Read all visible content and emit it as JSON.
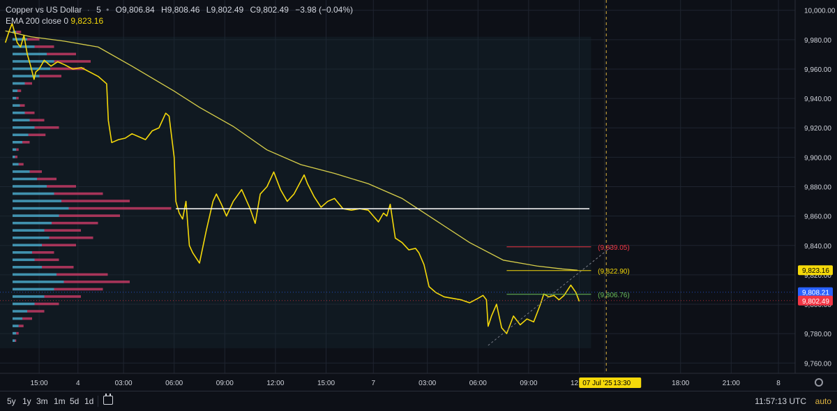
{
  "legend": {
    "symbol": "Copper vs US Dollar",
    "interval": "5",
    "o_label": "O",
    "o": "9,806.84",
    "h_label": "H",
    "h": "9,808.46",
    "l_label": "L",
    "l": "9,802.49",
    "c_label": "C",
    "c": "9,802.49",
    "change": "−3.98 (−0.04%)",
    "ema_label": "EMA 200 close 0",
    "ema_value": "9,823.16"
  },
  "bottom_bar": {
    "ranges": [
      "5y",
      "1y",
      "3m",
      "1m",
      "5d",
      "1d"
    ],
    "calendar_icon": "calendar-range-icon",
    "clock": "11:57:13 UTC",
    "scale_mode": "auto"
  },
  "colors": {
    "background": "#0d1017",
    "grid": "#1f2430",
    "price_line": "#f5d90a",
    "ema": "#d8cf4a",
    "volume_up": "#4aa8c8",
    "volume_down": "#c23a63",
    "poc": "#ffffff",
    "last_price": "#f23645",
    "bid_label": "#2962ff",
    "target_red": "#f23645",
    "target_green": "#6bbf59"
  },
  "chart_data": {
    "type": "line",
    "title": "Copper vs US Dollar · 5",
    "ylim": [
      9753,
      10007
    ],
    "y_ticks": [
      10000,
      9980,
      9960,
      9940,
      9920,
      9900,
      9880,
      9860,
      9840,
      9820,
      9800,
      9780,
      9760
    ],
    "y_tick_labels": [
      "10,000.00",
      "9,980.00",
      "9,960.00",
      "9,940.00",
      "9,920.00",
      "9,900.00",
      "9,880.00",
      "9,860.00",
      "9,840.00",
      "9,820.00",
      "9,800.00",
      "9,780.00",
      "9,760.00"
    ],
    "x_ticks": [
      "15:00",
      "4",
      "03:00",
      "06:00",
      "09:00",
      "12:00",
      "15:00",
      "7",
      "03:00",
      "06:00",
      "09:00",
      "12:00",
      "13:30",
      "18:00",
      "21:00",
      "8"
    ],
    "x_tick_pos": [
      0.5,
      2.8,
      5.5,
      8.5,
      11.5,
      14.5,
      17.5,
      20.3,
      23.5,
      26.5,
      29.5,
      32.5,
      34.0,
      38.5,
      41.5,
      44.3
    ],
    "series": [
      {
        "name": "Copper vs US Dollar",
        "x": [
          -1.5,
          -1.3,
          -1.1,
          -1.0,
          -0.8,
          -0.6,
          -0.4,
          -0.2,
          0.0,
          0.2,
          0.3,
          0.5,
          0.8,
          1.2,
          1.6,
          2.0,
          2.5,
          3.0,
          3.5,
          4.0,
          4.5,
          4.6,
          4.8,
          5.2,
          5.6,
          6.0,
          6.4,
          6.8,
          7.2,
          7.6,
          8.0,
          8.2,
          8.5,
          8.6,
          8.8,
          9.0,
          9.2,
          9.4,
          9.6,
          10.0,
          10.4,
          10.8,
          11.0,
          11.3,
          11.6,
          12.0,
          12.5,
          13.0,
          13.3,
          13.6,
          14.0,
          14.4,
          14.8,
          15.2,
          15.6,
          16.2,
          16.4,
          16.8,
          17.2,
          17.6,
          18.0,
          18.5,
          19.0,
          19.5,
          20.0,
          20.3,
          20.6,
          20.9,
          21.1,
          21.3,
          21.6,
          22.0,
          22.4,
          22.8,
          23.0,
          23.3,
          23.6,
          24.0,
          24.5,
          25.0,
          25.5,
          26.0,
          26.5,
          26.8,
          27.0,
          27.1,
          27.3,
          27.6,
          27.9,
          28.2,
          28.6,
          29.0,
          29.4,
          29.8,
          30.2,
          30.4,
          30.7,
          31.0,
          31.3,
          31.6,
          32.0,
          32.3,
          32.5
        ],
        "values": [
          9978,
          9985,
          9991,
          9987,
          9978,
          9975,
          9983,
          9970,
          9962,
          9953,
          9958,
          9960,
          9966,
          9962,
          9965,
          9963,
          9960,
          9961,
          9958,
          9955,
          9950,
          9925,
          9910,
          9912,
          9913,
          9916,
          9914,
          9912,
          9918,
          9920,
          9930,
          9928,
          9900,
          9870,
          9862,
          9858,
          9870,
          9840,
          9835,
          9828,
          9850,
          9870,
          9875,
          9868,
          9860,
          9870,
          9878,
          9865,
          9855,
          9875,
          9880,
          9890,
          9878,
          9870,
          9875,
          9888,
          9882,
          9873,
          9866,
          9870,
          9872,
          9865,
          9864,
          9865,
          9864,
          9860,
          9856,
          9862,
          9860,
          9868,
          9845,
          9842,
          9837,
          9838,
          9835,
          9827,
          9812,
          9808,
          9805,
          9804,
          9803,
          9801,
          9804,
          9806,
          9803,
          9785,
          9792,
          9800,
          9784,
          9780,
          9792,
          9786,
          9790,
          9788,
          9800,
          9807,
          9805,
          9806,
          9803,
          9806,
          9813,
          9808,
          9802
        ]
      },
      {
        "name": "EMA 200 close 0",
        "x": [
          -1.5,
          0.0,
          2.0,
          4.0,
          6.0,
          8.5,
          10.0,
          12.0,
          14.0,
          16.0,
          18.0,
          20.0,
          22.0,
          24.0,
          26.0,
          28.0,
          30.0,
          31.5,
          32.4
        ],
        "values": [
          9986,
          9982,
          9979,
          9975,
          9962,
          9945,
          9934,
          9921,
          9905,
          9895,
          9889,
          9882,
          9872,
          9857,
          9842,
          9830,
          9826,
          9824,
          9823.16
        ]
      }
    ],
    "volume_profile": {
      "price": [
        9985,
        9980,
        9975,
        9970,
        9965,
        9960,
        9955,
        9950,
        9945,
        9940,
        9935,
        9930,
        9925,
        9920,
        9915,
        9910,
        9905,
        9900,
        9895,
        9890,
        9885,
        9880,
        9875,
        9870,
        9865,
        9860,
        9855,
        9850,
        9845,
        9840,
        9835,
        9830,
        9825,
        9820,
        9815,
        9810,
        9805,
        9800,
        9795,
        9790,
        9785,
        9780,
        9775
      ],
      "up": [
        3,
        12,
        18,
        28,
        34,
        31,
        22,
        10,
        4,
        3,
        6,
        10,
        14,
        18,
        13,
        8,
        3,
        2,
        5,
        14,
        20,
        28,
        34,
        40,
        46,
        38,
        32,
        26,
        30,
        24,
        16,
        18,
        24,
        36,
        42,
        34,
        26,
        18,
        12,
        8,
        5,
        3,
        2
      ],
      "down": [
        4,
        10,
        16,
        24,
        30,
        28,
        18,
        6,
        3,
        2,
        4,
        8,
        12,
        20,
        14,
        6,
        2,
        2,
        4,
        10,
        16,
        24,
        40,
        56,
        84,
        50,
        38,
        30,
        36,
        28,
        18,
        20,
        26,
        42,
        54,
        40,
        30,
        20,
        14,
        8,
        4,
        2,
        1
      ],
      "poc_price": 9865
    },
    "levels": [
      {
        "value": 9865,
        "label": ""
      },
      {
        "value": 9839.05,
        "label": "(9,839.05)"
      },
      {
        "value": 9822.9,
        "label": "(9,822.90)"
      },
      {
        "value": 9806.76,
        "label": "(9,806.76)"
      }
    ],
    "price_labels": [
      {
        "value": 9823.16,
        "label": "9,823.16"
      },
      {
        "value": 9808.21,
        "label": "9,808.21"
      },
      {
        "value": 9802.49,
        "label": "9,802.49"
      }
    ],
    "crosshair_time": "07 Jul '25",
    "grid": true
  }
}
